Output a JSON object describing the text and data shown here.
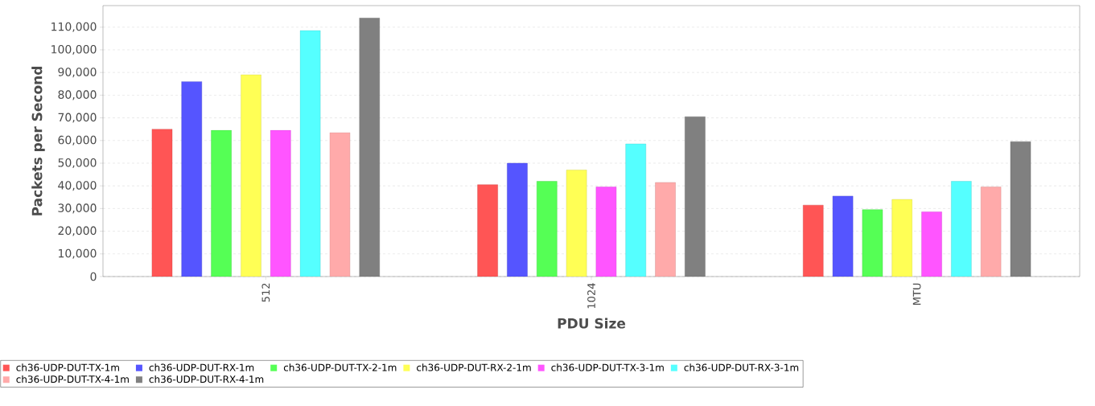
{
  "chart_data": {
    "type": "bar",
    "xlabel": "PDU Size",
    "ylabel": "Packets per Second",
    "categories": [
      "512",
      "1024",
      "MTU"
    ],
    "series": [
      {
        "name": "ch36-UDP-DUT-TX-1m",
        "color": "#ff5555",
        "values": [
          65000,
          40500,
          31500
        ]
      },
      {
        "name": "ch36-UDP-DUT-RX-1m",
        "color": "#5555ff",
        "values": [
          86000,
          50000,
          35500
        ]
      },
      {
        "name": "ch36-UDP-DUT-TX-2-1m",
        "color": "#55ff55",
        "values": [
          64500,
          42000,
          29500
        ]
      },
      {
        "name": "ch36-UDP-DUT-RX-2-1m",
        "color": "#ffff55",
        "values": [
          89000,
          47000,
          34000
        ]
      },
      {
        "name": "ch36-UDP-DUT-TX-3-1m",
        "color": "#ff55ff",
        "values": [
          64500,
          39500,
          28500
        ]
      },
      {
        "name": "ch36-UDP-DUT-RX-3-1m",
        "color": "#55ffff",
        "values": [
          108500,
          58500,
          42000
        ]
      },
      {
        "name": "ch36-UDP-DUT-TX-4-1m",
        "color": "#ffaaaa",
        "values": [
          63500,
          41500,
          39500
        ]
      },
      {
        "name": "ch36-UDP-DUT-RX-4-1m",
        "color": "#808080",
        "values": [
          114000,
          70500,
          59500
        ]
      }
    ],
    "ylim": [
      0,
      119500
    ],
    "yticks": [
      0,
      {
        "value": 10000,
        "label": "10,000"
      },
      {
        "value": 20000,
        "label": "20,000"
      },
      {
        "value": 30000,
        "label": "30,000"
      },
      {
        "value": 40000,
        "label": "40,000"
      },
      {
        "value": 50000,
        "label": "50,000"
      },
      {
        "value": 60000,
        "label": "60,000"
      },
      {
        "value": 70000,
        "label": "70,000"
      },
      {
        "value": 80000,
        "label": "80,000"
      },
      {
        "value": 90000,
        "label": "90,000"
      },
      {
        "value": 100000,
        "label": "100,000"
      },
      {
        "value": 110000,
        "label": "110,000"
      }
    ],
    "grid": "y",
    "legend": "bottom"
  }
}
